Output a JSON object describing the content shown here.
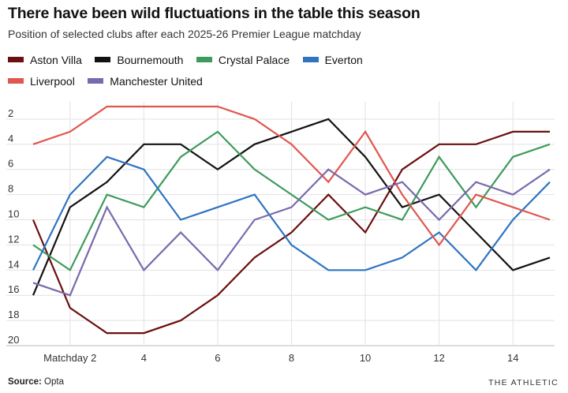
{
  "header": {
    "title": "There have been wild fluctuations in the table this season",
    "subtitle": "Position of selected clubs after each 2025-26 Premier League matchday"
  },
  "footer": {
    "source_label": "Source:",
    "source_value": "Opta",
    "brand": "THE ATHLETIC"
  },
  "chart_data": {
    "type": "line",
    "title": "There have been wild fluctuations in the table this season",
    "subtitle": "Position of selected clubs after each 2025-26 Premier League matchday",
    "xlabel": "",
    "ylabel": "",
    "x": [
      1,
      2,
      3,
      4,
      5,
      6,
      7,
      8,
      9,
      10,
      11,
      12,
      13,
      14,
      15
    ],
    "xlim": [
      1,
      15
    ],
    "ylim": [
      20,
      1
    ],
    "y_inverted": true,
    "x_ticks": [
      {
        "x": 2,
        "label": "Matchday 2"
      },
      {
        "x": 4,
        "label": "4"
      },
      {
        "x": 6,
        "label": "6"
      },
      {
        "x": 8,
        "label": "8"
      },
      {
        "x": 10,
        "label": "10"
      },
      {
        "x": 12,
        "label": "12"
      },
      {
        "x": 14,
        "label": "14"
      }
    ],
    "y_ticks": [
      {
        "y": 2,
        "label": "2"
      },
      {
        "y": 4,
        "label": "4"
      },
      {
        "y": 6,
        "label": "6"
      },
      {
        "y": 8,
        "label": "8"
      },
      {
        "y": 10,
        "label": "10"
      },
      {
        "y": 12,
        "label": "12"
      },
      {
        "y": 14,
        "label": "14"
      },
      {
        "y": 16,
        "label": "16"
      },
      {
        "y": 18,
        "label": "18"
      },
      {
        "y": 20,
        "label": "20"
      }
    ],
    "grid": true,
    "legend_position": "top",
    "series": [
      {
        "name": "Aston Villa",
        "color": "#6b0f0f",
        "values": [
          10,
          17,
          19,
          19,
          18,
          16,
          13,
          11,
          8,
          11,
          6,
          4,
          4,
          3,
          3
        ]
      },
      {
        "name": "Bournemouth",
        "color": "#121212",
        "values": [
          16,
          9,
          7,
          4,
          4,
          6,
          4,
          3,
          2,
          5,
          9,
          8,
          11,
          14,
          13
        ]
      },
      {
        "name": "Crystal Palace",
        "color": "#3d9b5c",
        "values": [
          12,
          14,
          8,
          9,
          5,
          3,
          6,
          8,
          10,
          9,
          10,
          5,
          9,
          5,
          4
        ]
      },
      {
        "name": "Everton",
        "color": "#2f74c0",
        "values": [
          14,
          8,
          5,
          6,
          10,
          9,
          8,
          12,
          14,
          14,
          13,
          11,
          14,
          10,
          7
        ]
      },
      {
        "name": "Liverpool",
        "color": "#e0574f",
        "values": [
          4,
          3,
          1,
          1,
          1,
          1,
          2,
          4,
          7,
          3,
          8,
          12,
          8,
          9,
          10
        ]
      },
      {
        "name": "Manchester United",
        "color": "#7a6aad",
        "values": [
          15,
          16,
          9,
          14,
          11,
          14,
          10,
          9,
          6,
          8,
          7,
          10,
          7,
          8,
          6
        ]
      }
    ]
  }
}
